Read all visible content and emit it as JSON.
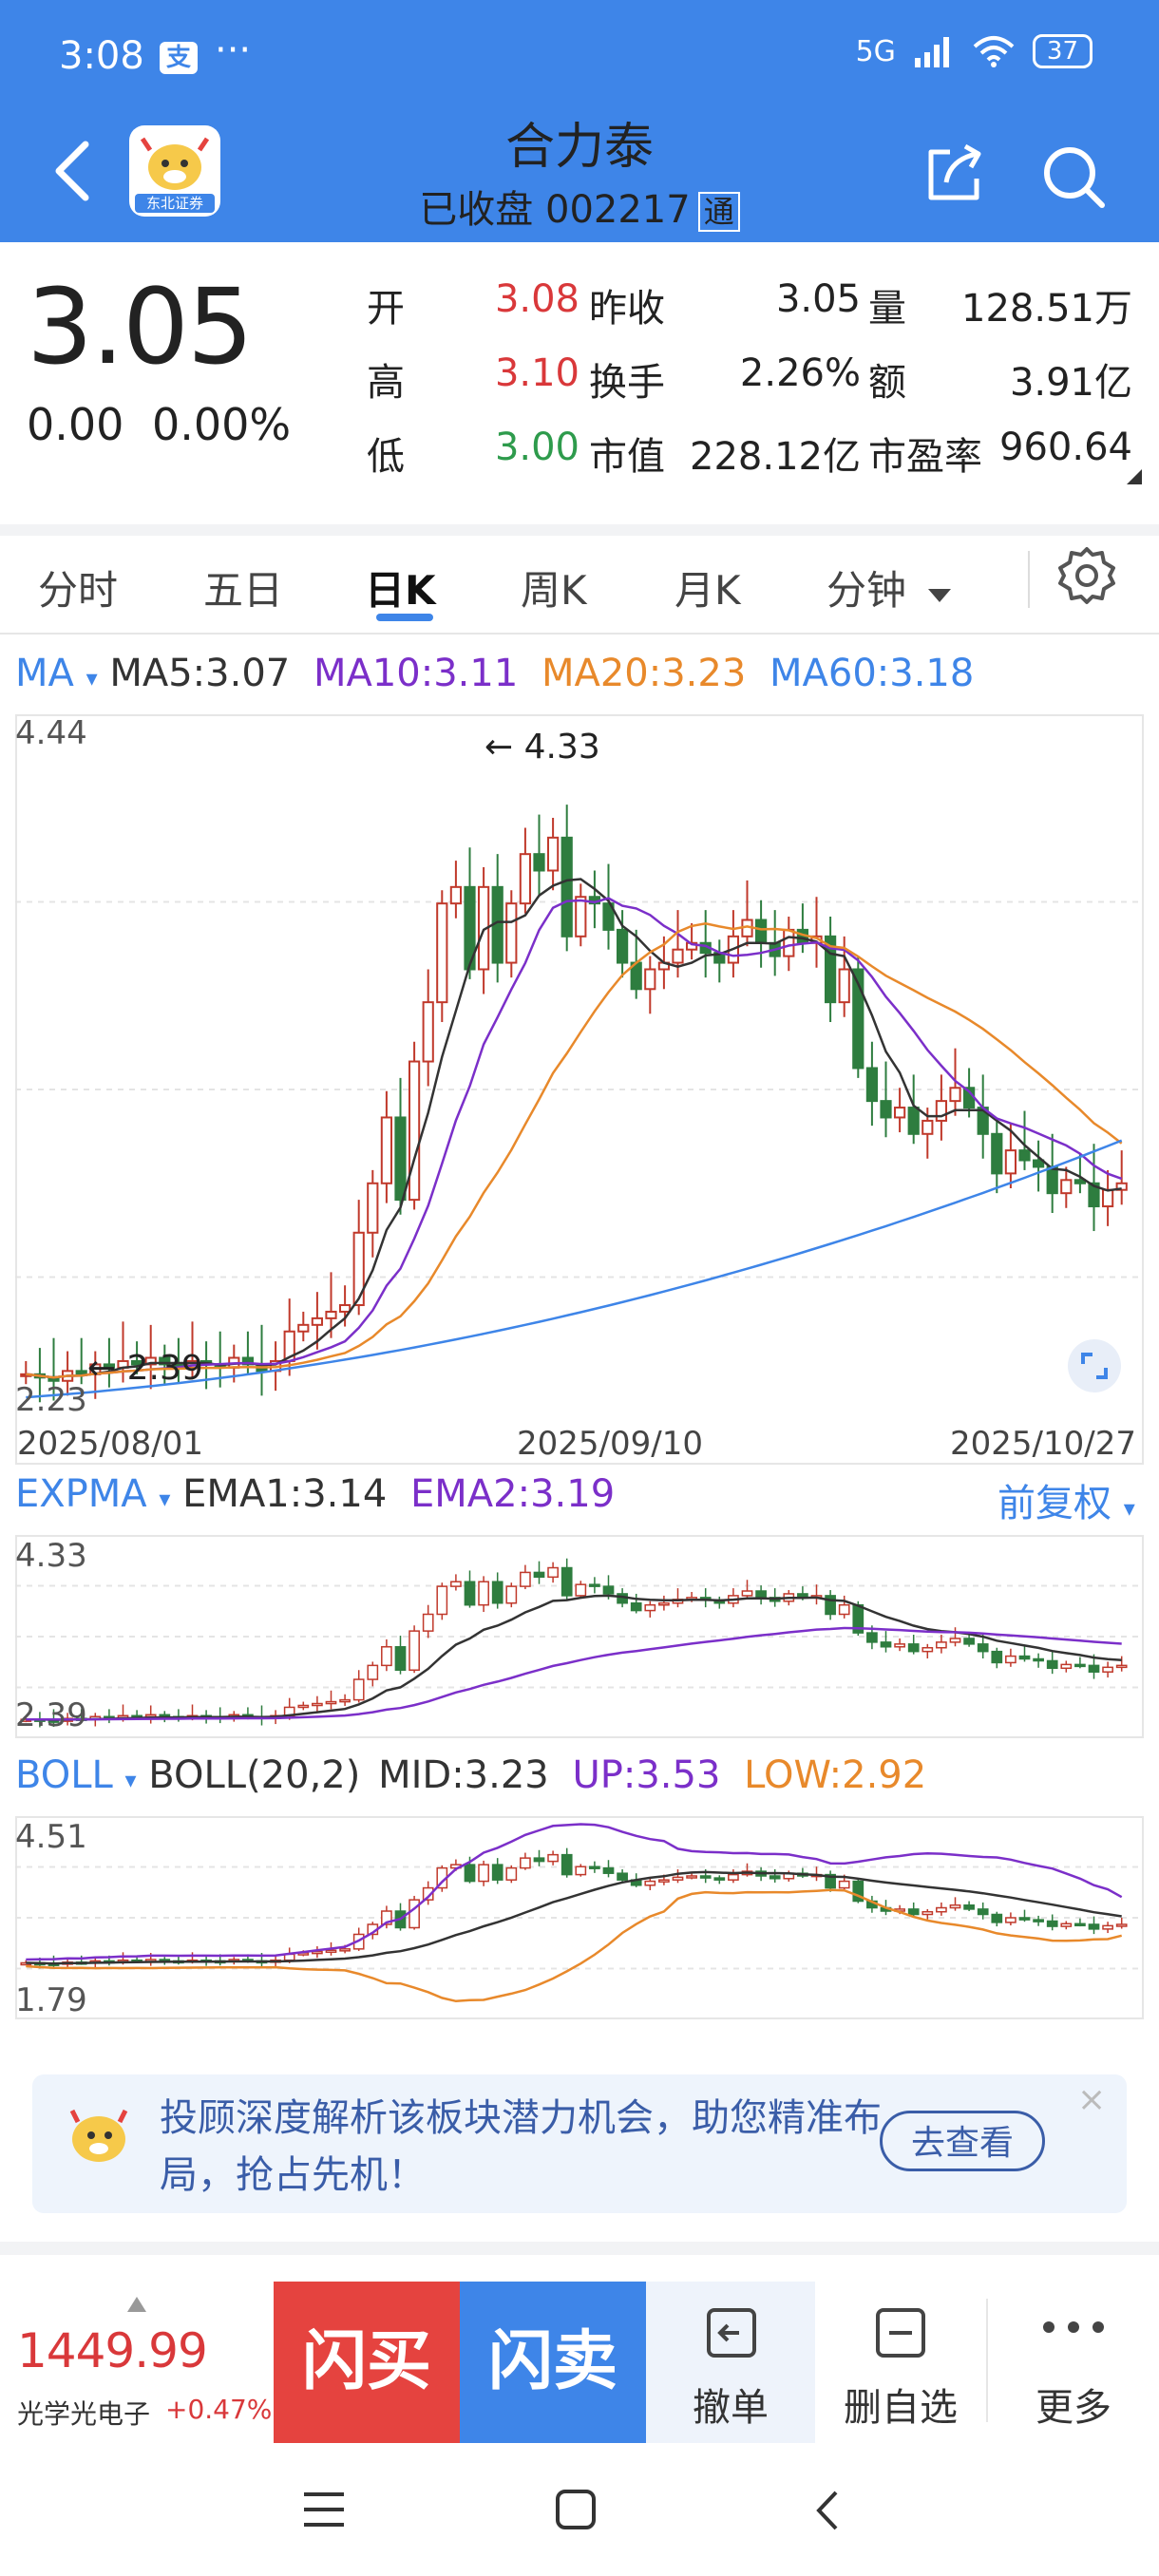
{
  "status_bar": {
    "time": "3:08",
    "alipay_badge": "支",
    "dots": "···",
    "network": "5G",
    "battery": "37"
  },
  "header": {
    "title": "合力泰",
    "status": "已收盘",
    "code": "002217",
    "tong": "通",
    "broker_logo_text": "东北证券"
  },
  "quote": {
    "price": "3.05",
    "change": "0.00",
    "change_pct": "0.00%",
    "open_label": "开",
    "open": "3.08",
    "high_label": "高",
    "high": "3.10",
    "low_label": "低",
    "low": "3.00",
    "prev_close_label": "昨收",
    "prev_close": "3.05",
    "turnover_label": "换手",
    "turnover": "2.26%",
    "mktcap_label": "市值",
    "mktcap": "228.12亿",
    "volume_label": "量",
    "volume": "128.51万",
    "amount_label": "额",
    "amount": "3.91亿",
    "pe_label": "市盈率",
    "pe": "960.64"
  },
  "tabs": [
    {
      "label": "分时"
    },
    {
      "label": "五日"
    },
    {
      "label": "日K"
    },
    {
      "label": "周K"
    },
    {
      "label": "月K"
    },
    {
      "label": "分钟"
    }
  ],
  "ma_legend": {
    "name": "MA",
    "ma5": "MA5:3.07",
    "ma10": "MA10:3.11",
    "ma20": "MA20:3.23",
    "ma60": "MA60:3.18"
  },
  "main_chart": {
    "y_top": "4.44",
    "y_bottom": "2.23",
    "max_annot": "← 4.33",
    "min_annot": "← 2.39",
    "dates": [
      "2025/08/01",
      "2025/09/10",
      "2025/10/27"
    ]
  },
  "expma_legend": {
    "name": "EXPMA",
    "ema1": "EMA1:3.14",
    "ema2": "EMA2:3.19",
    "adjust": "前复权"
  },
  "expma_chart": {
    "y_top": "4.33",
    "y_bottom": "2.39"
  },
  "boll_legend": {
    "name": "BOLL",
    "params": "BOLL(20,2)",
    "mid": "MID:3.23",
    "up": "UP:3.53",
    "low": "LOW:2.92"
  },
  "boll_chart": {
    "y_top": "4.51",
    "y_bottom": "1.79"
  },
  "ad": {
    "text": "投顾深度解析该板块潜力机会，助您精准布局，抢占先机！",
    "button": "去查看",
    "close": "×"
  },
  "bottom_bar": {
    "index_value": "1449.99",
    "index_name": "光学光电子",
    "index_change": "+0.47%",
    "buy": "闪买",
    "sell": "闪卖",
    "cancel": "撤单",
    "remove_watch": "删自选",
    "more": "更多"
  },
  "colors": {
    "header_bg": "#3e85e8",
    "up": "#d9383a",
    "down": "#2e9b4c",
    "ma5": "#333333",
    "ma10": "#7b2fc9",
    "ma20": "#e8892b",
    "ma60": "#3e85e8"
  }
}
